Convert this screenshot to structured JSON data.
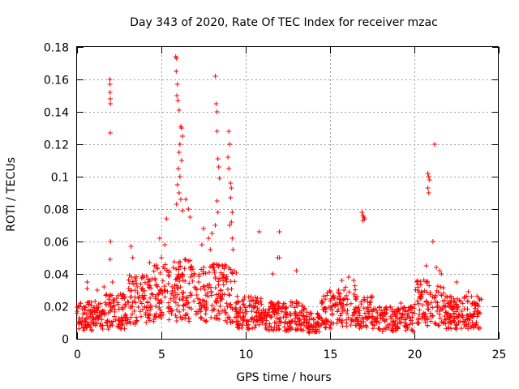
{
  "chart_data": {
    "type": "scatter",
    "title": "Day 343 of 2020, Rate Of TEC Index for receiver mzac",
    "xlabel": "GPS time / hours",
    "ylabel": "ROTI / TECUs",
    "xlim": [
      0,
      25
    ],
    "ylim": [
      0,
      0.18
    ],
    "x_ticks": [
      0,
      5,
      10,
      15,
      20,
      25
    ],
    "x_tick_labels": [
      "0",
      "5",
      "10",
      "15",
      "20",
      "25"
    ],
    "y_ticks": [
      0,
      0.02,
      0.04,
      0.06,
      0.08,
      0.1,
      0.12,
      0.14,
      0.16,
      0.18
    ],
    "y_tick_labels": [
      "0",
      "0.02",
      "0.04",
      "0.06",
      "0.08",
      "0.1",
      "0.12",
      "0.14",
      "0.16",
      "0.18"
    ],
    "grid": true,
    "marker": "+",
    "color": "#ff0000",
    "series": [
      {
        "name": "ROTI",
        "points": [
          [
            1.95,
            0.16
          ],
          [
            1.95,
            0.157
          ],
          [
            1.96,
            0.152
          ],
          [
            1.97,
            0.148
          ],
          [
            1.98,
            0.145
          ],
          [
            1.97,
            0.127
          ],
          [
            1.98,
            0.06
          ],
          [
            1.96,
            0.049
          ],
          [
            5.85,
            0.174
          ],
          [
            5.9,
            0.173
          ],
          [
            5.88,
            0.165
          ],
          [
            5.95,
            0.157
          ],
          [
            5.92,
            0.15
          ],
          [
            5.98,
            0.147
          ],
          [
            6.05,
            0.141
          ],
          [
            6.15,
            0.131
          ],
          [
            6.2,
            0.13
          ],
          [
            6.25,
            0.125
          ],
          [
            6.1,
            0.12
          ],
          [
            6.05,
            0.115
          ],
          [
            6.2,
            0.11
          ],
          [
            6.0,
            0.105
          ],
          [
            6.1,
            0.1
          ],
          [
            5.95,
            0.095
          ],
          [
            6.05,
            0.09
          ],
          [
            6.15,
            0.086
          ],
          [
            5.9,
            0.083
          ],
          [
            6.25,
            0.079
          ],
          [
            6.45,
            0.086
          ],
          [
            6.6,
            0.08
          ],
          [
            6.7,
            0.075
          ],
          [
            8.2,
            0.162
          ],
          [
            8.25,
            0.145
          ],
          [
            8.3,
            0.14
          ],
          [
            8.3,
            0.128
          ],
          [
            8.35,
            0.111
          ],
          [
            8.4,
            0.106
          ],
          [
            8.45,
            0.099
          ],
          [
            8.3,
            0.085
          ],
          [
            8.35,
            0.078
          ],
          [
            8.2,
            0.07
          ],
          [
            8.0,
            0.065
          ],
          [
            9.0,
            0.128
          ],
          [
            9.05,
            0.12
          ],
          [
            8.95,
            0.112
          ],
          [
            9.0,
            0.105
          ],
          [
            9.1,
            0.096
          ],
          [
            9.15,
            0.093
          ],
          [
            9.1,
            0.087
          ],
          [
            9.2,
            0.078
          ],
          [
            9.15,
            0.072
          ],
          [
            9.05,
            0.07
          ],
          [
            9.2,
            0.062
          ],
          [
            9.25,
            0.055
          ],
          [
            10.8,
            0.066
          ],
          [
            12.0,
            0.066
          ],
          [
            11.9,
            0.05
          ],
          [
            12.0,
            0.05
          ],
          [
            11.6,
            0.04
          ],
          [
            13.0,
            0.042
          ],
          [
            16.9,
            0.078
          ],
          [
            16.95,
            0.076
          ],
          [
            17.0,
            0.075
          ],
          [
            17.05,
            0.074
          ],
          [
            16.95,
            0.073
          ],
          [
            20.8,
            0.102
          ],
          [
            20.85,
            0.1
          ],
          [
            20.9,
            0.098
          ],
          [
            20.8,
            0.093
          ],
          [
            20.85,
            0.09
          ],
          [
            21.2,
            0.12
          ],
          [
            21.1,
            0.06
          ],
          [
            20.7,
            0.045
          ],
          [
            21.3,
            0.044
          ],
          [
            21.5,
            0.042
          ],
          [
            21.6,
            0.04
          ],
          [
            0.6,
            0.035
          ],
          [
            0.6,
            0.031
          ],
          [
            1.2,
            0.03
          ],
          [
            1.6,
            0.032
          ],
          [
            2.1,
            0.035
          ],
          [
            3.2,
            0.057
          ],
          [
            3.3,
            0.05
          ],
          [
            4.3,
            0.047
          ],
          [
            4.9,
            0.062
          ],
          [
            5.3,
            0.074
          ],
          [
            5.2,
            0.058
          ],
          [
            5.0,
            0.05
          ],
          [
            7.5,
            0.068
          ],
          [
            7.4,
            0.058
          ],
          [
            7.8,
            0.062
          ],
          [
            7.9,
            0.055
          ],
          [
            15.2,
            0.025
          ],
          [
            15.5,
            0.03
          ],
          [
            15.7,
            0.036
          ],
          [
            16.1,
            0.038
          ],
          [
            16.4,
            0.036
          ],
          [
            19.2,
            0.022
          ],
          [
            20.2,
            0.03
          ],
          [
            22.5,
            0.035
          ],
          [
            23.2,
            0.029
          ]
        ]
      }
    ]
  }
}
